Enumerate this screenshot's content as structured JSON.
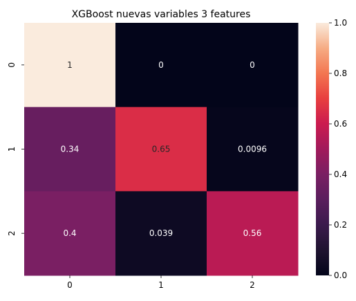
{
  "chart_data": {
    "type": "heatmap",
    "title": "XGBoost nuevas variables 3 features",
    "xlabel": "",
    "ylabel": "",
    "x_categories": [
      "0",
      "1",
      "2"
    ],
    "y_categories": [
      "0",
      "1",
      "2"
    ],
    "values": [
      [
        1,
        0,
        0
      ],
      [
        0.34,
        0.65,
        0.0096
      ],
      [
        0.4,
        0.039,
        0.56
      ]
    ],
    "annotations": [
      [
        "1",
        "0",
        "0"
      ],
      [
        "0.34",
        "0.65",
        "0.0096"
      ],
      [
        "0.4",
        "0.039",
        "0.56"
      ]
    ],
    "colorbar": {
      "range": [
        0,
        1
      ],
      "ticks": [
        "0.0",
        "0.2",
        "0.4",
        "0.6",
        "0.8",
        "1.0"
      ]
    },
    "colormap": "rocket",
    "grid": false
  }
}
